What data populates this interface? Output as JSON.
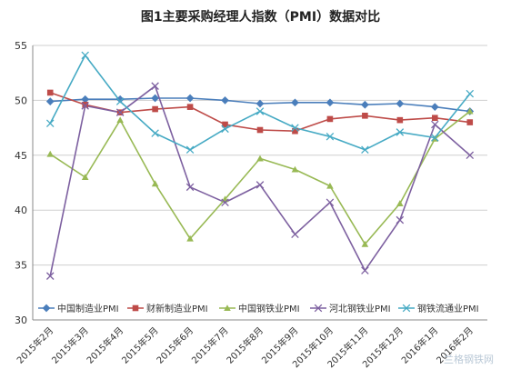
{
  "title": "图1主要采购经理人指数（PMI）数据对比",
  "watermark": "兰格钢铁网",
  "chart_data": {
    "type": "line",
    "title": "图1主要采购经理人指数（PMI）数据对比",
    "xlabel": "",
    "ylabel": "",
    "ylim": [
      30,
      55
    ],
    "yticks": [
      30,
      35,
      40,
      45,
      50,
      55
    ],
    "grid": true,
    "legend_position": "bottom",
    "categories": [
      "2015年2月",
      "2015年3月",
      "2015年4月",
      "2015年5月",
      "2015年6月",
      "2015年7月",
      "2015年8月",
      "2015年9月",
      "2015年10月",
      "2015年11月",
      "2015年12月",
      "2016年1月",
      "2016年2月"
    ],
    "series": [
      {
        "name": "中国制造业PMI",
        "color": "#4a7ebb",
        "marker": "diamond",
        "values": [
          49.9,
          50.1,
          50.1,
          50.2,
          50.2,
          50.0,
          49.7,
          49.8,
          49.8,
          49.6,
          49.7,
          49.4,
          49.0
        ]
      },
      {
        "name": "财新制造业PMI",
        "color": "#be4b48",
        "marker": "square",
        "values": [
          50.7,
          49.6,
          48.9,
          49.2,
          49.4,
          47.8,
          47.3,
          47.2,
          48.3,
          48.6,
          48.2,
          48.4,
          48.0
        ]
      },
      {
        "name": "中国钢铁业PMI",
        "color": "#98b954",
        "marker": "triangle",
        "values": [
          45.1,
          43.0,
          48.2,
          42.4,
          37.4,
          41.0,
          44.7,
          43.7,
          42.2,
          36.9,
          40.6,
          46.5,
          49.0
        ]
      },
      {
        "name": "河北钢铁业PMI",
        "color": "#7d60a0",
        "marker": "cross",
        "values": [
          34.0,
          49.5,
          48.9,
          51.3,
          42.1,
          40.7,
          42.3,
          37.8,
          40.7,
          34.5,
          39.1,
          47.8,
          45.0
        ]
      },
      {
        "name": "钢铁流通业PMI",
        "color": "#46aac4",
        "marker": "cross",
        "values": [
          47.9,
          54.1,
          49.9,
          47.0,
          45.5,
          47.4,
          49.0,
          47.5,
          46.7,
          45.5,
          47.1,
          46.6,
          50.6
        ]
      }
    ]
  }
}
